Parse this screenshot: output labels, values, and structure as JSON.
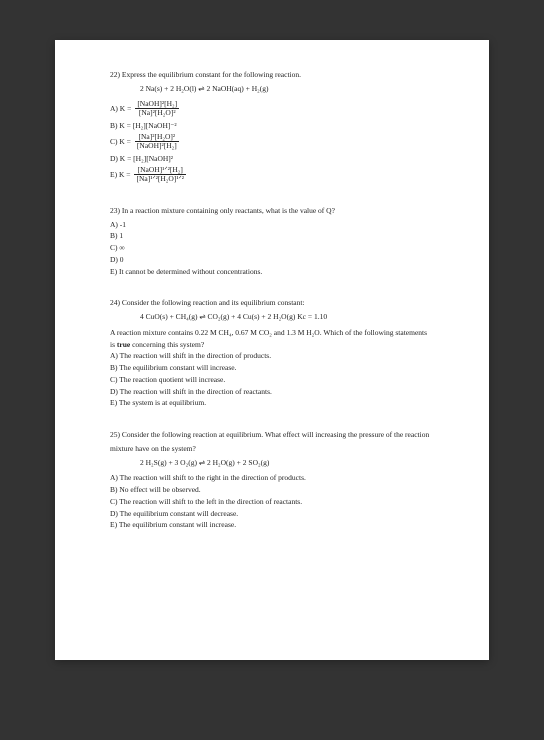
{
  "q22": {
    "prompt": "22) Express the equilibrium constant for the following reaction.",
    "reaction": "2 Na(s) + 2 H₂O(l)  ⇌  2 NaOH(aq) + H₂(g)",
    "A_label": "A) K =",
    "A_num": "[NaOH]²[H₂]",
    "A_den": "[Na]²[H₂O]²",
    "B": "B) K = [H₂][NaOH]⁻²",
    "C_label": "C) K =",
    "C_num": "[Na]²[H₂O]²",
    "C_den": "[NaOH]²[H₂]",
    "D": "D) K = [H₂][NaOH]²",
    "E_label": "E) K =",
    "E_num": "[NaOH]¹ᐟ²[H₂]",
    "E_den": "[Na]¹ᐟ²[H₂O]¹ᐟ²"
  },
  "q23": {
    "prompt": "23) In a reaction mixture containing only reactants, what is the value of Q?",
    "A": "A) -1",
    "B": "B) 1",
    "C": "C) ∞",
    "D": "D) 0",
    "E": "E) It cannot be determined without concentrations."
  },
  "q24": {
    "prompt": "24) Consider the following reaction and its equilibrium constant:",
    "reaction": "4 CuO(s) + CH₄(g)  ⇌  CO₂(g) + 4 Cu(s) + 2 H₂O(g)       Kc = 1.10",
    "desc1": "A reaction mixture contains 0.22 M CH₄, 0.67 M CO₂ and 1.3 M H₂O. Which of the following statements",
    "desc2_pre": "is ",
    "desc2_bold": "true",
    "desc2_post": " concerning this system?",
    "A": "A) The reaction will shift in the direction of products.",
    "B": "B) The equilibrium constant will increase.",
    "C": "C) The reaction quotient will increase.",
    "D": "D) The reaction will shift in the direction of reactants.",
    "E": "E) The system is at equilibrium."
  },
  "q25": {
    "prompt1": "25) Consider the following reaction at equilibrium. What effect will increasing the pressure of the reaction",
    "prompt2": "mixture have on the system?",
    "reaction": "2 H₂S(g) + 3 O₂(g)  ⇌  2 H₂O(g) + 2 SO₂(g)",
    "A": "A) The reaction will shift to the right in the direction of products.",
    "B": "B) No effect will be observed.",
    "C": "C) The reaction will shift to the left in the direction of reactants.",
    "D": "D) The equilibrium constant will decrease.",
    "E": "E) The equilibrium constant will increase."
  }
}
